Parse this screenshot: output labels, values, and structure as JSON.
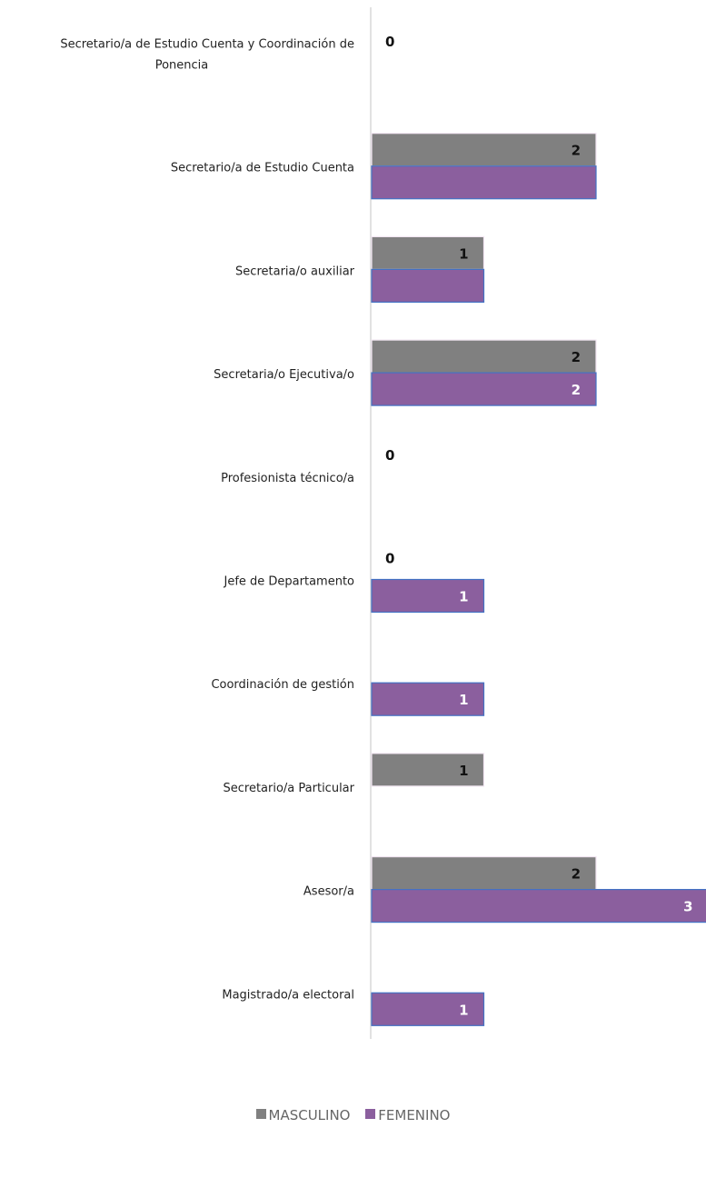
{
  "chart_data": {
    "type": "bar",
    "orientation": "horizontal",
    "categories": [
      "Secretario/a de Estudio Cuenta y Coordinación de Ponencia",
      "Secretario/a de Estudio Cuenta",
      "Secretaria/o auxiliar",
      "Secretaria/o Ejecutiva/o",
      "Profesionista técnico/a",
      "Jefe de Departamento",
      "Coordinación de gestión",
      "Secretario/a Particular",
      "Asesor/a",
      "Magistrado/a electoral"
    ],
    "category_lines": [
      [
        "Secretario/a de Estudio Cuenta y Coordinación de",
        "Ponencia"
      ],
      [
        "Secretario/a de Estudio Cuenta"
      ],
      [
        "Secretaria/o auxiliar"
      ],
      [
        "Secretaria/o Ejecutiva/o"
      ],
      [
        "Profesionista técnico/a"
      ],
      [
        "Jefe de Departamento"
      ],
      [
        "Coordinación de gestión"
      ],
      [
        "Secretario/a Particular"
      ],
      [
        "Asesor/a"
      ],
      [
        "Magistrado/a electoral"
      ]
    ],
    "series": [
      {
        "name": "MASCULINO",
        "color": "#808080",
        "values": [
          0,
          2,
          1,
          2,
          0,
          0,
          null,
          1,
          2,
          null
        ],
        "labels": [
          "0",
          "2",
          "1",
          "2",
          "0",
          "0",
          "",
          "1",
          "2",
          ""
        ]
      },
      {
        "name": "FEMENINO",
        "color": "#8B5F9E",
        "values": [
          null,
          2,
          1,
          2,
          null,
          1,
          1,
          null,
          3,
          1
        ],
        "labels": [
          "",
          "",
          "",
          "2",
          "",
          "1",
          "1",
          "",
          "3",
          "1"
        ]
      }
    ],
    "xlim": [
      0,
      3
    ],
    "grid": false,
    "legend_position": "bottom"
  }
}
